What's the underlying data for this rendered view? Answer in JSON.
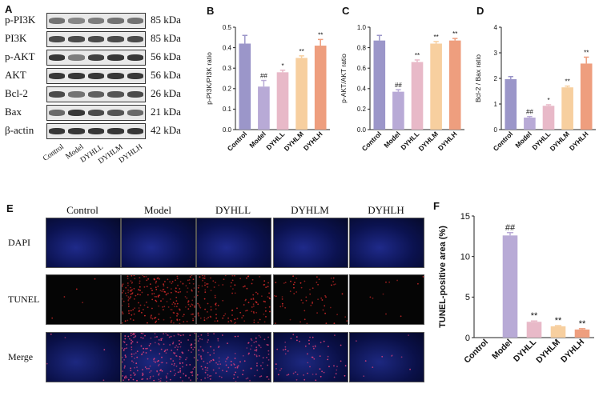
{
  "panels": {
    "A": "A",
    "B": "B",
    "C": "C",
    "D": "D",
    "E": "E",
    "F": "F"
  },
  "blot": {
    "rows": [
      {
        "protein": "p-PI3K",
        "size": "85 kDa",
        "intensity": [
          0.55,
          0.45,
          0.5,
          0.55,
          0.55
        ]
      },
      {
        "protein": "PI3K",
        "size": "85 kDa",
        "intensity": [
          0.75,
          0.75,
          0.75,
          0.75,
          0.75
        ]
      },
      {
        "protein": "p-AKT",
        "size": "56 kDa",
        "intensity": [
          0.85,
          0.5,
          0.8,
          0.85,
          0.85
        ]
      },
      {
        "protein": "AKT",
        "size": "56 kDa",
        "intensity": [
          0.85,
          0.85,
          0.85,
          0.85,
          0.85
        ]
      },
      {
        "protein": "Bcl-2",
        "size": "26 kDa",
        "intensity": [
          0.75,
          0.55,
          0.65,
          0.7,
          0.75
        ]
      },
      {
        "protein": "Bax",
        "size": "21 kDa",
        "intensity": [
          0.6,
          0.85,
          0.75,
          0.7,
          0.6
        ]
      },
      {
        "protein": "β-actin",
        "size": "42 kDa",
        "intensity": [
          0.85,
          0.85,
          0.85,
          0.85,
          0.85
        ]
      }
    ],
    "lanes": [
      "Control",
      "Model",
      "DYHLL",
      "DYHLM",
      "DYHLH"
    ]
  },
  "colors": {
    "control": "#9b96c9",
    "model": "#b8aad6",
    "dyhll": "#e8b9c8",
    "dyhlm": "#f7cf9f",
    "dyhlh": "#ee9e7e"
  },
  "chart_data": [
    {
      "panel": "B",
      "type": "bar",
      "categories": [
        "Control",
        "Model",
        "DYHLL",
        "DYHLM",
        "DYHLH"
      ],
      "values": [
        0.42,
        0.21,
        0.28,
        0.35,
        0.41
      ],
      "errors": [
        0.04,
        0.03,
        0.01,
        0.01,
        0.03
      ],
      "annotations": [
        "",
        "##",
        "*",
        "**",
        "**"
      ],
      "ylabel": "p-PI3K/PI3K ratio",
      "ylim": [
        0,
        0.5
      ],
      "yticks": [
        "0.0",
        "0.1",
        "0.2",
        "0.3",
        "0.4",
        "0.5"
      ]
    },
    {
      "panel": "C",
      "type": "bar",
      "categories": [
        "Control",
        "Model",
        "DYHLL",
        "DYHLM",
        "DYHLH"
      ],
      "values": [
        0.87,
        0.37,
        0.66,
        0.84,
        0.87
      ],
      "errors": [
        0.05,
        0.02,
        0.02,
        0.02,
        0.02
      ],
      "annotations": [
        "",
        "##",
        "**",
        "**",
        "**"
      ],
      "ylabel": "p-AKT/AKT ratio",
      "ylim": [
        0,
        1.0
      ],
      "yticks": [
        "0.0",
        "0.2",
        "0.4",
        "0.6",
        "0.8",
        "1.0"
      ]
    },
    {
      "panel": "D",
      "type": "bar",
      "categories": [
        "Control",
        "Model",
        "DYHLL",
        "DYHLM",
        "DYHLH"
      ],
      "values": [
        1.97,
        0.47,
        0.93,
        1.65,
        2.58
      ],
      "errors": [
        0.1,
        0.04,
        0.04,
        0.05,
        0.25
      ],
      "annotations": [
        "",
        "##",
        "*",
        "**",
        "**"
      ],
      "ylabel": "Bcl-2 / Bax ratio",
      "ylim": [
        0,
        4
      ],
      "yticks": [
        "0",
        "1",
        "2",
        "3",
        "4"
      ]
    },
    {
      "panel": "F",
      "type": "bar",
      "categories": [
        "Control",
        "Model",
        "DYHLL",
        "DYHLM",
        "DYHLH"
      ],
      "values": [
        0.0,
        12.6,
        1.95,
        1.4,
        1.0
      ],
      "errors": [
        0.0,
        0.35,
        0.1,
        0.08,
        0.1
      ],
      "annotations": [
        "",
        "##",
        "**",
        "**",
        "**"
      ],
      "ylabel": "TUNEL-positive area (%)",
      "ylim": [
        0,
        15
      ],
      "yticks": [
        "0",
        "5",
        "10",
        "15"
      ]
    }
  ],
  "micrographs": {
    "columns": [
      "Control",
      "Model",
      "DYHLL",
      "DYHLM",
      "DYHLH"
    ],
    "rows": [
      "DAPI",
      "TUNEL",
      "Merge"
    ],
    "tunel_level": [
      0.02,
      0.9,
      0.55,
      0.25,
      0.04
    ]
  }
}
